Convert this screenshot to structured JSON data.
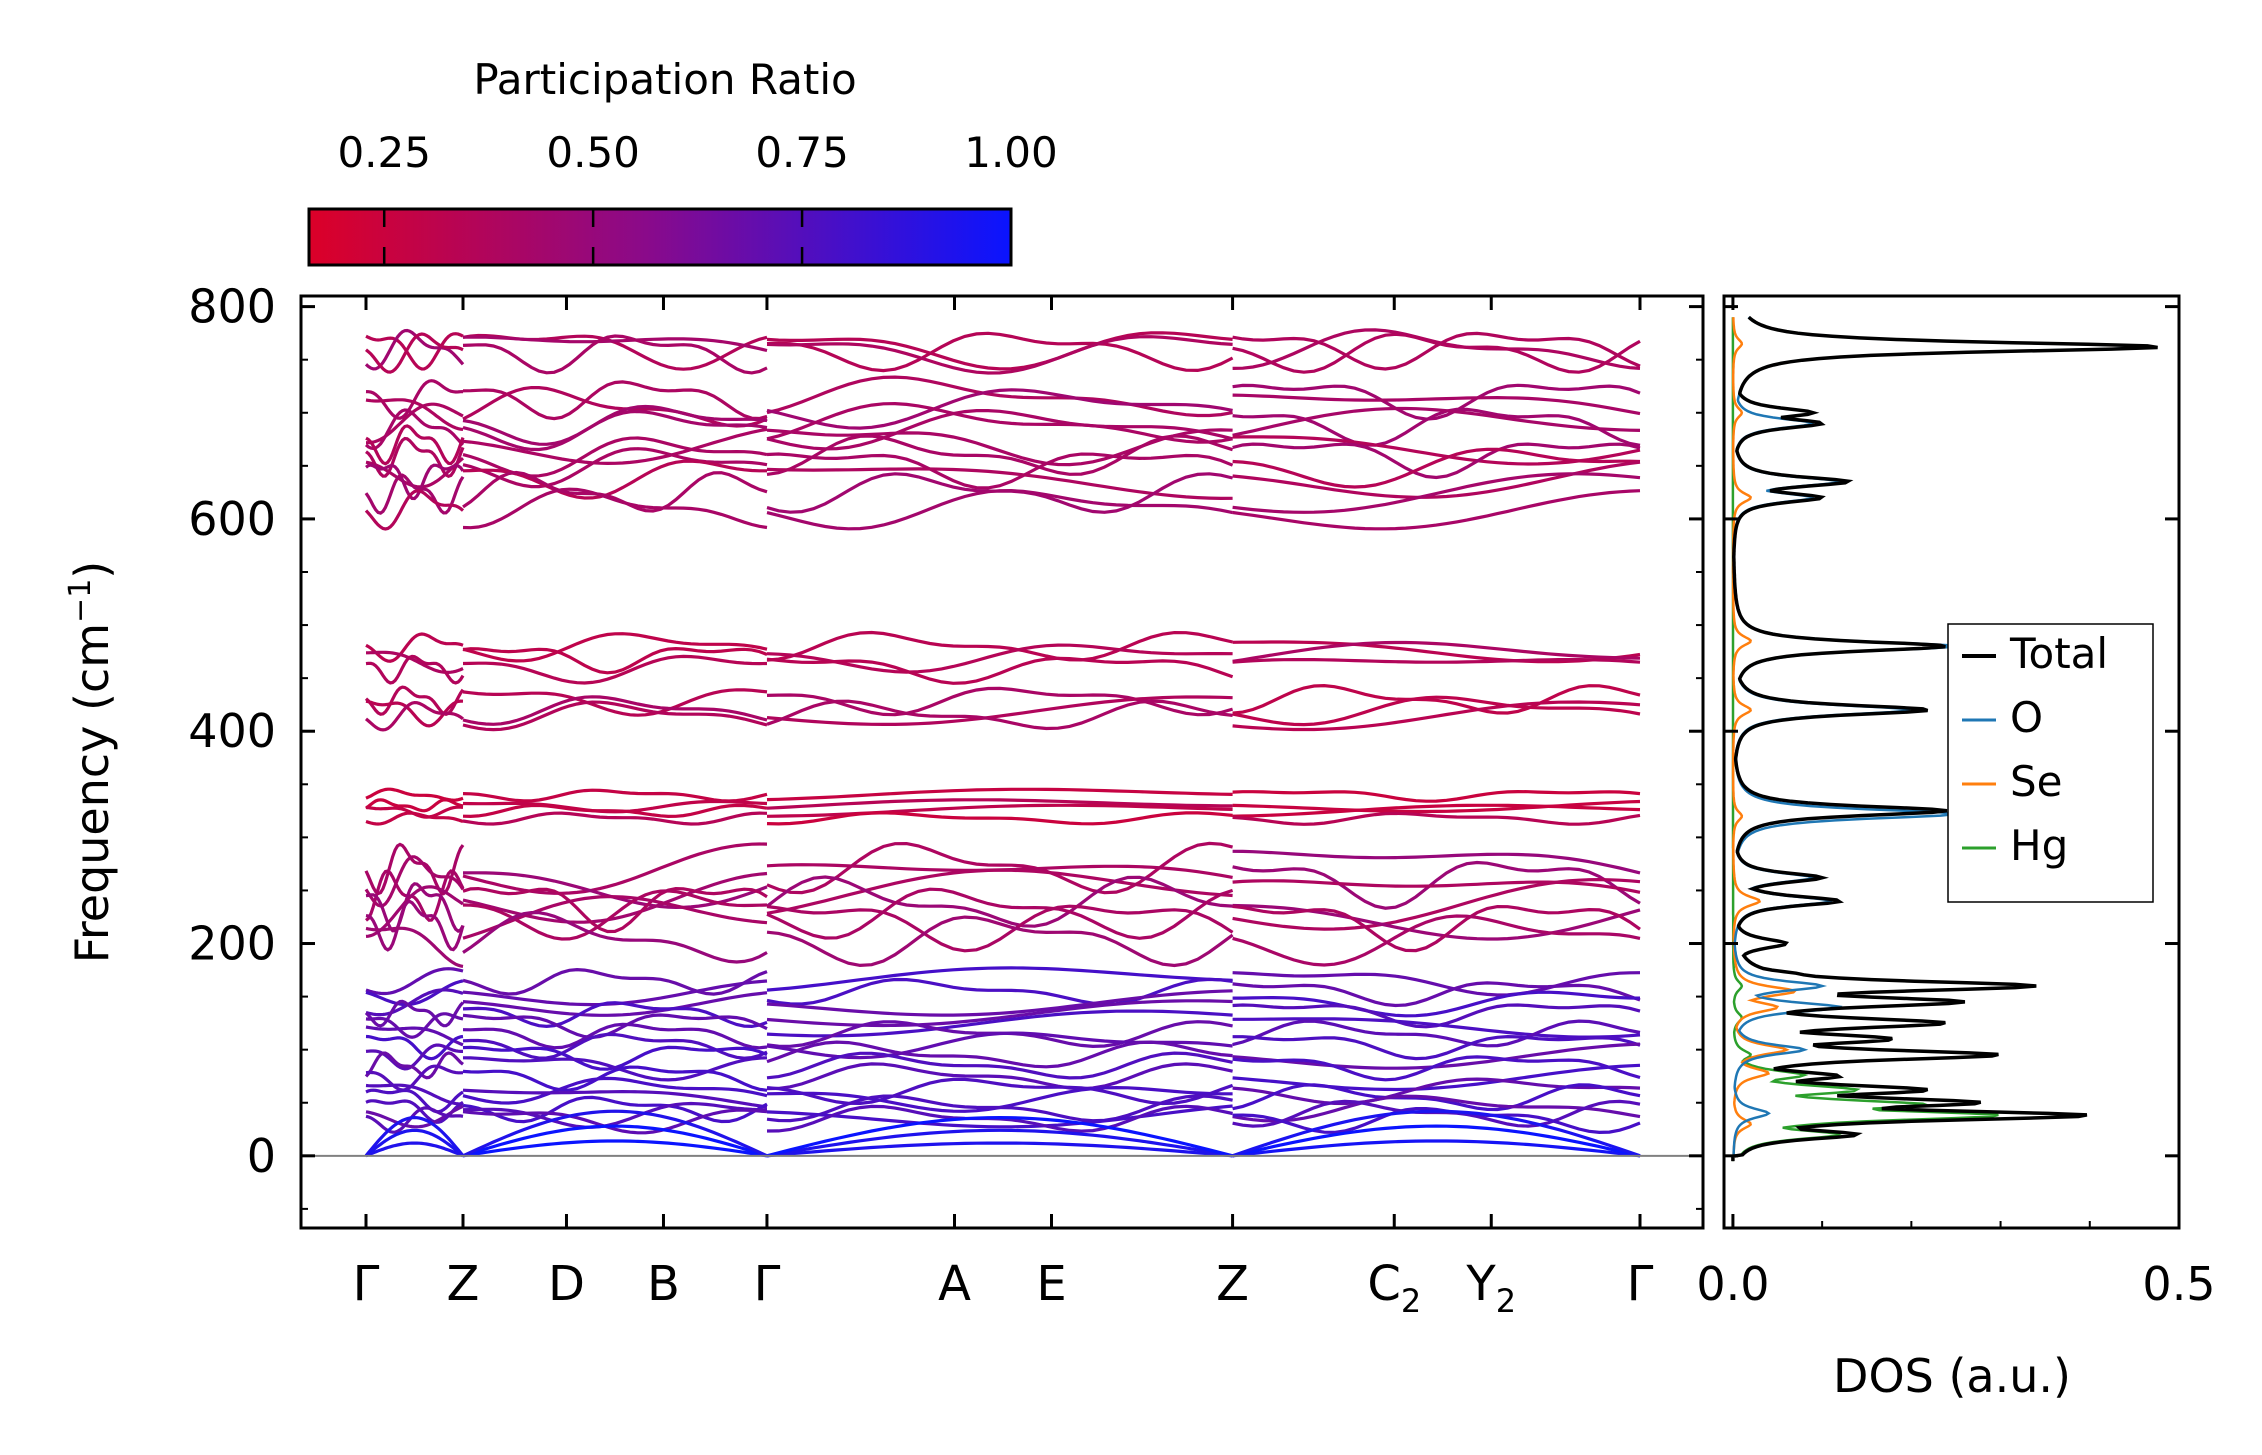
{
  "chart_data": [
    {
      "type": "line",
      "subtype": "phonon-band-structure",
      "colorbar": {
        "title": "Participation Ratio",
        "ticks": [
          "0.25",
          "0.50",
          "0.75",
          "1.00"
        ],
        "tick_values": [
          0.25,
          0.5,
          0.75,
          1.0
        ],
        "range": [
          0.16,
          1.0
        ],
        "color_low": "#dc0028",
        "color_mid": "#8a0a8a",
        "color_high": "#0a14ff"
      },
      "ylabel": "Frequency (cm",
      "ylabel_sup": "−1",
      "ylabel_close": ")",
      "ylim": [
        -68,
        810
      ],
      "yticks": [
        0,
        200,
        400,
        600,
        800
      ],
      "ytick_labels": [
        "0",
        "200",
        "400",
        "600",
        "800"
      ],
      "kpoints": [
        "Γ",
        "Z",
        "D",
        "B",
        "Γ",
        "A",
        "E",
        "Z",
        "C",
        "Y",
        "Γ"
      ],
      "kpoint_subscripts": [
        "",
        "",
        "",
        "",
        "",
        "",
        "",
        "",
        "2",
        "2",
        ""
      ],
      "kpoint_positions": [
        0.0,
        0.75,
        1.55,
        2.3,
        3.1,
        4.55,
        5.3,
        6.7,
        7.95,
        8.7,
        9.85
      ],
      "segment_breaks": [
        0.75,
        3.1,
        6.7
      ],
      "zero_line_color": "#808080",
      "bands_approx": [
        {
          "group": "high",
          "levels": [
            762,
            760,
            758,
            715,
            705,
            690,
            685,
            672,
            660,
            650,
            640,
            625,
            610
          ]
        },
        {
          "group": "mid-high",
          "levels": [
            480,
            470,
            460,
            430,
            420,
            415
          ]
        },
        {
          "group": "mid",
          "levels": [
            340,
            330,
            325,
            318
          ]
        },
        {
          "group": "mid-low",
          "levels": [
            272,
            260,
            245,
            238,
            230,
            220,
            205
          ]
        },
        {
          "group": "low",
          "levels": [
            165,
            155,
            145,
            135,
            125,
            115,
            105,
            95,
            85,
            75,
            62,
            55,
            45,
            40,
            35
          ]
        },
        {
          "group": "acoustic",
          "levels": [
            0,
            0,
            0
          ]
        }
      ]
    },
    {
      "type": "line",
      "subtype": "density-of-states",
      "xlabel": "DOS (a.u.)",
      "xlim": [
        -0.01,
        0.5
      ],
      "xticks": [
        0.0,
        0.5
      ],
      "xtick_labels": [
        "0.0",
        "0.5"
      ],
      "ylim": [
        -68,
        810
      ],
      "legend_position": "right",
      "series": [
        {
          "name": "Total",
          "color": "#000000",
          "peaks": [
            [
              0,
              0.0
            ],
            [
              20,
              0.14
            ],
            [
              38,
              0.4
            ],
            [
              50,
              0.28
            ],
            [
              62,
              0.22
            ],
            [
              75,
              0.12
            ],
            [
              95,
              0.3
            ],
            [
              110,
              0.18
            ],
            [
              125,
              0.24
            ],
            [
              145,
              0.26
            ],
            [
              160,
              0.34
            ],
            [
              170,
              0.08
            ],
            [
              200,
              0.06
            ],
            [
              240,
              0.12
            ],
            [
              262,
              0.1
            ],
            [
              325,
              0.24
            ],
            [
              420,
              0.22
            ],
            [
              480,
              0.24
            ],
            [
              620,
              0.1
            ],
            [
              635,
              0.13
            ],
            [
              690,
              0.1
            ],
            [
              700,
              0.09
            ],
            [
              762,
              0.48
            ]
          ]
        },
        {
          "name": "O",
          "color": "#1f77b4",
          "peaks": [
            [
              0,
              0.0
            ],
            [
              40,
              0.04
            ],
            [
              100,
              0.08
            ],
            [
              140,
              0.12
            ],
            [
              160,
              0.1
            ],
            [
              240,
              0.11
            ],
            [
              262,
              0.09
            ],
            [
              322,
              0.25
            ],
            [
              420,
              0.2
            ],
            [
              480,
              0.25
            ],
            [
              620,
              0.09
            ],
            [
              635,
              0.12
            ],
            [
              690,
              0.09
            ],
            [
              762,
              0.47
            ]
          ]
        },
        {
          "name": "Se",
          "color": "#ff7f0e",
          "peaks": [
            [
              0,
              0.0
            ],
            [
              30,
              0.02
            ],
            [
              78,
              0.04
            ],
            [
              100,
              0.06
            ],
            [
              140,
              0.05
            ],
            [
              155,
              0.07
            ],
            [
              240,
              0.03
            ],
            [
              320,
              0.01
            ],
            [
              420,
              0.02
            ],
            [
              485,
              0.02
            ],
            [
              620,
              0.02
            ],
            [
              700,
              0.01
            ],
            [
              765,
              0.01
            ]
          ]
        },
        {
          "name": "Hg",
          "color": "#2ca02c",
          "peaks": [
            [
              0,
              0.0
            ],
            [
              20,
              0.12
            ],
            [
              38,
              0.3
            ],
            [
              48,
              0.22
            ],
            [
              62,
              0.14
            ],
            [
              76,
              0.08
            ],
            [
              95,
              0.02
            ],
            [
              130,
              0.01
            ],
            [
              160,
              0.01
            ],
            [
              200,
              0.0
            ]
          ]
        }
      ]
    }
  ]
}
